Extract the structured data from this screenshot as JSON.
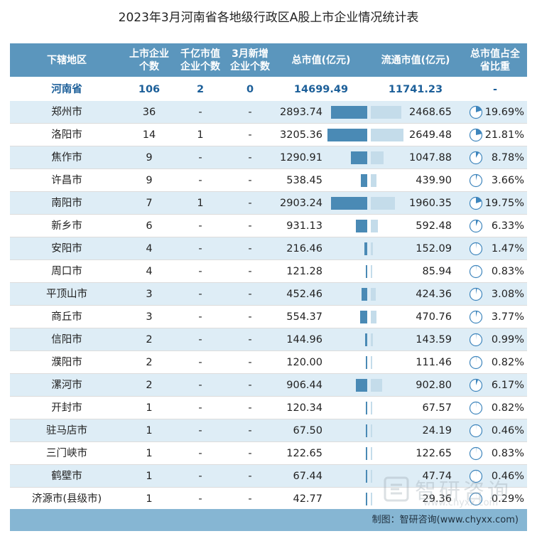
{
  "title": "2023年3月河南省各地级行政区A股上市企业情况统计表",
  "header": {
    "region": "下辖地区",
    "listed_line1": "上市企业",
    "listed_line2": "个数",
    "bigcap_line1": "千亿市值",
    "bigcap_line2": "企业个数",
    "new_line1": "3月新增",
    "new_line2": "企业个数",
    "total_cap": "总市值(亿元)",
    "float_cap": "流通市值(亿元)",
    "share_line1": "总市值占全",
    "share_line2": "省比重"
  },
  "total_row": {
    "region": "河南省",
    "listed": "106",
    "bigcap": "2",
    "new": "0",
    "total_cap": "14699.49",
    "float_cap": "11741.23",
    "share": "-"
  },
  "footer": "制图：智研咨询(www.chyxx.com)",
  "watermark": {
    "name": "智研咨询",
    "url": "www.chyxx.com"
  },
  "colors": {
    "header": "#5b96bd",
    "total_bar": "#4a8ab5",
    "float_bar": "#c4dcea",
    "pie": "#3f86bd",
    "shade": "#deedf6"
  },
  "chart_data": {
    "type": "table",
    "columns": [
      "下辖地区",
      "上市企业个数",
      "千亿市值企业个数",
      "3月新增企业个数",
      "总市值(亿元)",
      "流通市值(亿元)",
      "总市值占全省比重"
    ],
    "rows": [
      {
        "region": "郑州市",
        "listed": "36",
        "bigcap": "-",
        "new": "-",
        "total_cap": 2893.74,
        "float_cap": 2468.65,
        "share": "19.69%",
        "share_value": 19.69
      },
      {
        "region": "洛阳市",
        "listed": "14",
        "bigcap": "1",
        "new": "-",
        "total_cap": 3205.36,
        "float_cap": 2649.48,
        "share": "21.81%",
        "share_value": 21.81
      },
      {
        "region": "焦作市",
        "listed": "9",
        "bigcap": "-",
        "new": "-",
        "total_cap": 1290.91,
        "float_cap": 1047.88,
        "share": "8.78%",
        "share_value": 8.78
      },
      {
        "region": "许昌市",
        "listed": "9",
        "bigcap": "-",
        "new": "-",
        "total_cap": 538.45,
        "float_cap": 439.9,
        "share": "3.66%",
        "share_value": 3.66
      },
      {
        "region": "南阳市",
        "listed": "7",
        "bigcap": "1",
        "new": "-",
        "total_cap": 2903.24,
        "float_cap": 1960.35,
        "share": "19.75%",
        "share_value": 19.75
      },
      {
        "region": "新乡市",
        "listed": "6",
        "bigcap": "-",
        "new": "-",
        "total_cap": 931.13,
        "float_cap": 592.48,
        "share": "6.33%",
        "share_value": 6.33
      },
      {
        "region": "安阳市",
        "listed": "4",
        "bigcap": "-",
        "new": "-",
        "total_cap": 216.46,
        "float_cap": 152.09,
        "share": "1.47%",
        "share_value": 1.47
      },
      {
        "region": "周口市",
        "listed": "4",
        "bigcap": "-",
        "new": "-",
        "total_cap": 121.28,
        "float_cap": 85.94,
        "share": "0.83%",
        "share_value": 0.83
      },
      {
        "region": "平顶山市",
        "listed": "3",
        "bigcap": "-",
        "new": "-",
        "total_cap": 452.46,
        "float_cap": 424.36,
        "share": "3.08%",
        "share_value": 3.08
      },
      {
        "region": "商丘市",
        "listed": "3",
        "bigcap": "-",
        "new": "-",
        "total_cap": 554.37,
        "float_cap": 470.76,
        "share": "3.77%",
        "share_value": 3.77
      },
      {
        "region": "信阳市",
        "listed": "2",
        "bigcap": "-",
        "new": "-",
        "total_cap": 144.96,
        "float_cap": 143.59,
        "share": "0.99%",
        "share_value": 0.99
      },
      {
        "region": "濮阳市",
        "listed": "2",
        "bigcap": "-",
        "new": "-",
        "total_cap": 120.0,
        "float_cap": 111.46,
        "share": "0.82%",
        "share_value": 0.82
      },
      {
        "region": "漯河市",
        "listed": "2",
        "bigcap": "-",
        "new": "-",
        "total_cap": 906.44,
        "float_cap": 902.8,
        "share": "6.17%",
        "share_value": 6.17
      },
      {
        "region": "开封市",
        "listed": "1",
        "bigcap": "-",
        "new": "-",
        "total_cap": 120.34,
        "float_cap": 67.57,
        "share": "0.82%",
        "share_value": 0.82
      },
      {
        "region": "驻马店市",
        "listed": "1",
        "bigcap": "-",
        "new": "-",
        "total_cap": 67.5,
        "float_cap": 24.19,
        "share": "0.46%",
        "share_value": 0.46
      },
      {
        "region": "三门峡市",
        "listed": "1",
        "bigcap": "-",
        "new": "-",
        "total_cap": 122.65,
        "float_cap": 122.65,
        "share": "0.83%",
        "share_value": 0.83
      },
      {
        "region": "鹤壁市",
        "listed": "1",
        "bigcap": "-",
        "new": "-",
        "total_cap": 67.44,
        "float_cap": 47.74,
        "share": "0.46%",
        "share_value": 0.46
      },
      {
        "region": "济源市(县级市)",
        "listed": "1",
        "bigcap": "-",
        "new": "-",
        "total_cap": 42.77,
        "float_cap": 29.36,
        "share": "0.29%",
        "share_value": 0.29
      }
    ]
  }
}
